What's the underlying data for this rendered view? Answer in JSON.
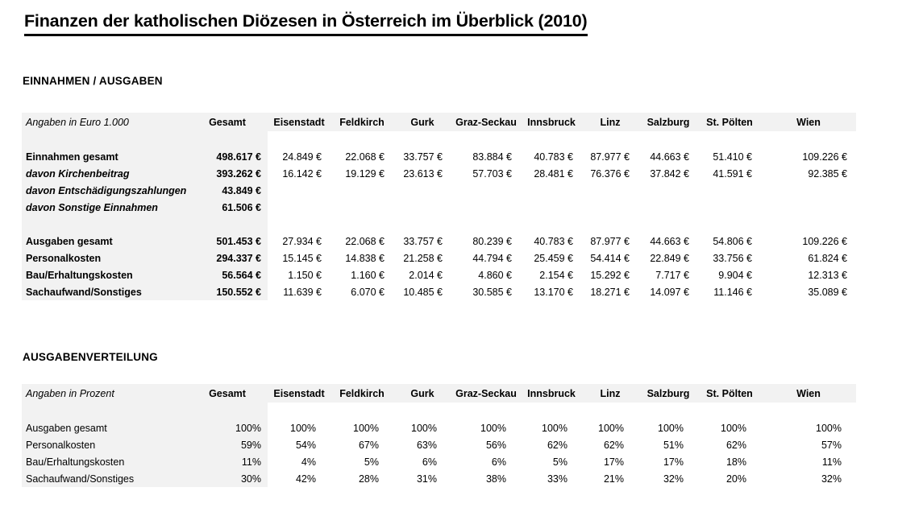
{
  "title": "Finanzen der katholischen Diözesen in Österreich im Überblick (2010)",
  "colors": {
    "band_gray": "#f2f2f2",
    "text": "#000000"
  },
  "sections": [
    {
      "heading": "EINNAHMEN / AUSGABEN",
      "unit_label": "Angaben in Euro 1.000",
      "columns": [
        "Gesamt",
        "Eisenstadt",
        "Feldkirch",
        "Gurk",
        "Graz-Seckau",
        "Innsbruck",
        "Linz",
        "Salzburg",
        "St. Pölten",
        "Wien"
      ],
      "rows": [
        {
          "spacer": true,
          "label": "",
          "values": [
            ""
          ]
        },
        {
          "label": "Einnahmen gesamt",
          "style": "bold",
          "values": [
            "498.617 €",
            "24.849 €",
            "22.068 €",
            "33.757 €",
            "83.884 €",
            "40.783 €",
            "87.977 €",
            "44.663 €",
            "51.410 €",
            "109.226 €"
          ]
        },
        {
          "label": "davon Kirchenbeitrag",
          "style": "bold-italic",
          "values": [
            "393.262 €",
            "16.142 €",
            "19.129 €",
            "23.613 €",
            "57.703 €",
            "28.481 €",
            "76.376 €",
            "37.842 €",
            "41.591 €",
            "92.385 €"
          ]
        },
        {
          "label": "davon Entschädigungszahlungen",
          "style": "bold-italic",
          "values": [
            "43.849 €"
          ]
        },
        {
          "label": "davon Sonstige Einnahmen",
          "style": "bold-italic",
          "values": [
            "61.506 €"
          ]
        },
        {
          "spacer": true,
          "label": "",
          "values": [
            ""
          ]
        },
        {
          "label": "Ausgaben gesamt",
          "style": "bold",
          "values": [
            "501.453 €",
            "27.934 €",
            "22.068 €",
            "33.757 €",
            "80.239 €",
            "40.783 €",
            "87.977 €",
            "44.663 €",
            "54.806 €",
            "109.226 €"
          ]
        },
        {
          "label": "Personalkosten",
          "style": "bold",
          "values": [
            "294.337 €",
            "15.145 €",
            "14.838 €",
            "21.258 €",
            "44.794 €",
            "25.459 €",
            "54.414 €",
            "22.849 €",
            "33.756 €",
            "61.824 €"
          ]
        },
        {
          "label": "Bau/Erhaltungskosten",
          "style": "bold",
          "values": [
            "56.564 €",
            "1.150 €",
            "1.160 €",
            "2.014 €",
            "4.860 €",
            "2.154 €",
            "15.292 €",
            "7.717 €",
            "9.904 €",
            "12.313 €"
          ]
        },
        {
          "label": "Sachaufwand/Sonstiges",
          "style": "bold",
          "values": [
            "150.552 €",
            "11.639 €",
            "6.070 €",
            "10.485 €",
            "30.585 €",
            "13.170 €",
            "18.271 €",
            "14.097 €",
            "11.146 €",
            "35.089 €"
          ]
        }
      ]
    },
    {
      "heading": "AUSGABENVERTEILUNG",
      "unit_label": "Angaben in Prozent",
      "columns": [
        "Gesamt",
        "Eisenstadt",
        "Feldkirch",
        "Gurk",
        "Graz-Seckau",
        "Innsbruck",
        "Linz",
        "Salzburg",
        "St. Pölten",
        "Wien"
      ],
      "rows": [
        {
          "spacer": true,
          "label": "",
          "values": [
            ""
          ]
        },
        {
          "label": "Ausgaben gesamt",
          "style": "",
          "values": [
            "100%",
            "100%",
            "100%",
            "100%",
            "100%",
            "100%",
            "100%",
            "100%",
            "100%",
            "100%"
          ]
        },
        {
          "label": "Personalkosten",
          "style": "",
          "values": [
            "59%",
            "54%",
            "67%",
            "63%",
            "56%",
            "62%",
            "62%",
            "51%",
            "62%",
            "57%"
          ]
        },
        {
          "label": "Bau/Erhaltungskosten",
          "style": "",
          "values": [
            "11%",
            "4%",
            "5%",
            "6%",
            "6%",
            "5%",
            "17%",
            "17%",
            "18%",
            "11%"
          ]
        },
        {
          "label": "Sachaufwand/Sonstiges",
          "style": "",
          "values": [
            "30%",
            "42%",
            "28%",
            "31%",
            "38%",
            "33%",
            "21%",
            "32%",
            "20%",
            "32%"
          ]
        }
      ]
    }
  ]
}
